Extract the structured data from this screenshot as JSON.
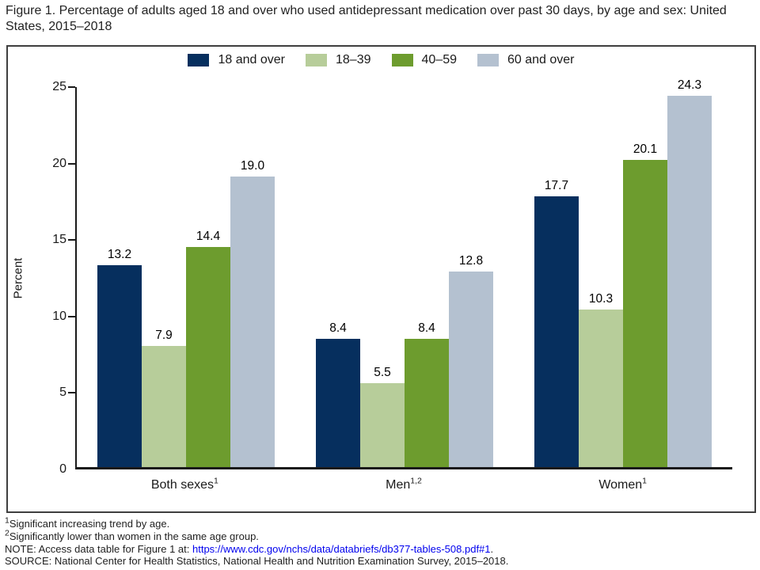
{
  "title": "Figure 1. Percentage of adults aged 18 and over who used antidepressant medication over past 30 days, by age and sex: United States, 2015–2018",
  "chart_data": {
    "type": "bar",
    "title": "Figure 1. Percentage of adults aged 18 and over who used antidepressant medication over past 30 days, by age and sex: United States, 2015–2018",
    "categories": [
      {
        "label": "Both sexes",
        "superscript": "1"
      },
      {
        "label": "Men",
        "superscript": "1,2"
      },
      {
        "label": "Women",
        "superscript": "1"
      }
    ],
    "series": [
      {
        "name": "18 and over",
        "color": "#062f5e",
        "values": [
          13.2,
          8.4,
          17.7
        ]
      },
      {
        "name": "18–39",
        "color": "#b7cd9a",
        "values": [
          7.9,
          5.5,
          10.3
        ]
      },
      {
        "name": "40–59",
        "color": "#6d9c2e",
        "values": [
          14.4,
          8.4,
          20.1
        ]
      },
      {
        "name": "60 and over",
        "color": "#b4c1d0",
        "values": [
          19.0,
          12.8,
          24.3
        ]
      }
    ],
    "xlabel": "",
    "ylabel": "Percent",
    "ylim": [
      0,
      25
    ],
    "yticks": [
      0,
      5,
      10,
      15,
      20,
      25
    ],
    "grid": false,
    "legend_position": "top",
    "value_labels": "one_decimal_above_bars"
  },
  "footnotes": {
    "items": [
      {
        "sup": "1",
        "text": "Significant increasing trend by age."
      },
      {
        "sup": "2",
        "text": "Significantly lower than women in the same age group."
      }
    ],
    "note": {
      "prefix": "NOTE: Access data table for Figure 1 at: ",
      "link": "https://www.cdc.gov/nchs/data/databriefs/db377-tables-508.pdf#1",
      "suffix": "."
    },
    "source": "SOURCE: National Center for Health Statistics, National Health and Nutrition Examination Survey, 2015–2018."
  }
}
